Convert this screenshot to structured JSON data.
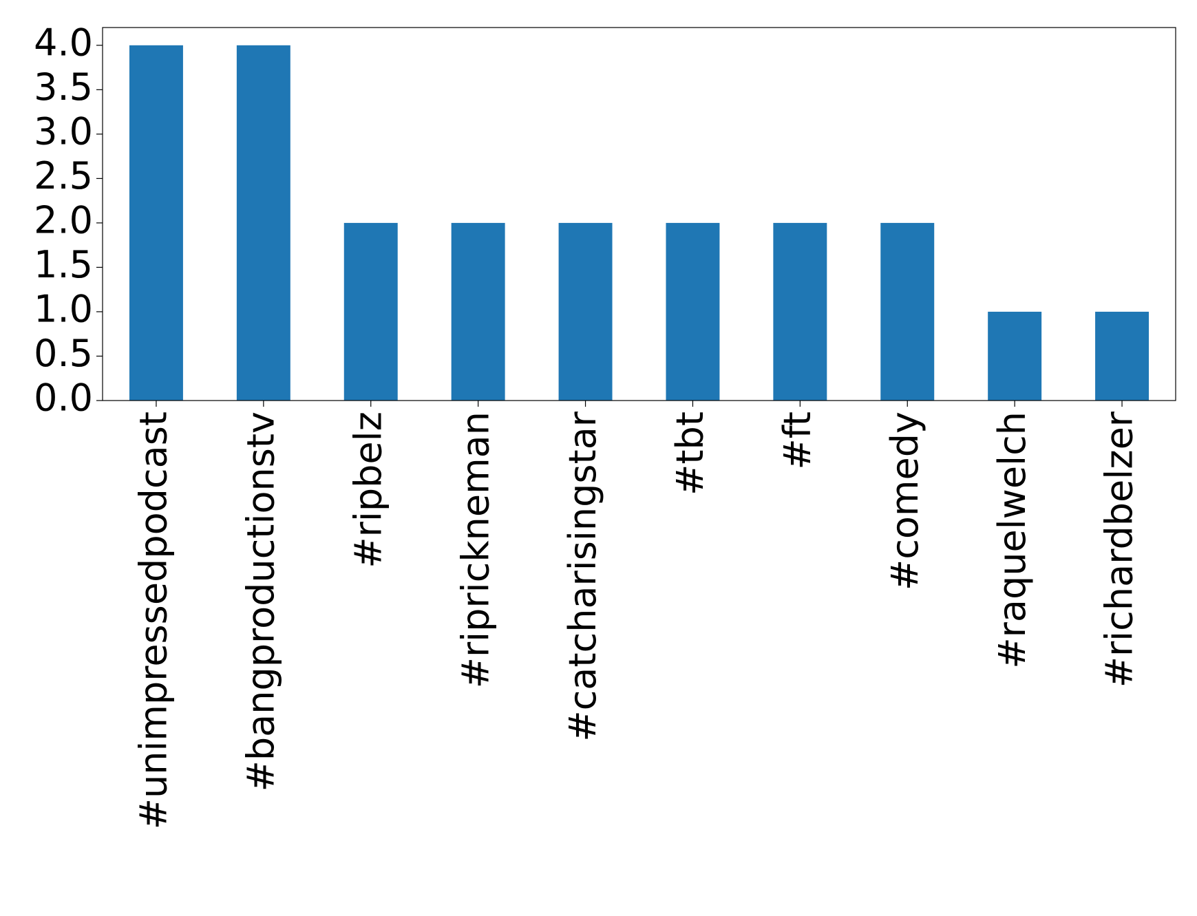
{
  "chart_data": {
    "type": "bar",
    "categories": [
      "#unimpressedpodcast",
      "#bangproductionstv",
      "#ripbelz",
      "#riprickneman",
      "#catcharisingstar",
      "#tbt",
      "#ft",
      "#comedy",
      "#raquelwelch",
      "#richardbelzer"
    ],
    "values": [
      4,
      4,
      2,
      2,
      2,
      2,
      2,
      2,
      1,
      1
    ],
    "color": "#1f77b4",
    "ylim": [
      0,
      4.2
    ],
    "yticks": [
      {
        "value": 0,
        "label": "0.0"
      },
      0.5,
      {
        "value": 1,
        "label": "1.0"
      },
      1.5,
      {
        "value": 2,
        "label": "2.0"
      },
      2.5,
      {
        "value": 3,
        "label": "3.0"
      },
      3.5,
      {
        "value": 4,
        "label": "4.0"
      }
    ],
    "grid": false
  }
}
